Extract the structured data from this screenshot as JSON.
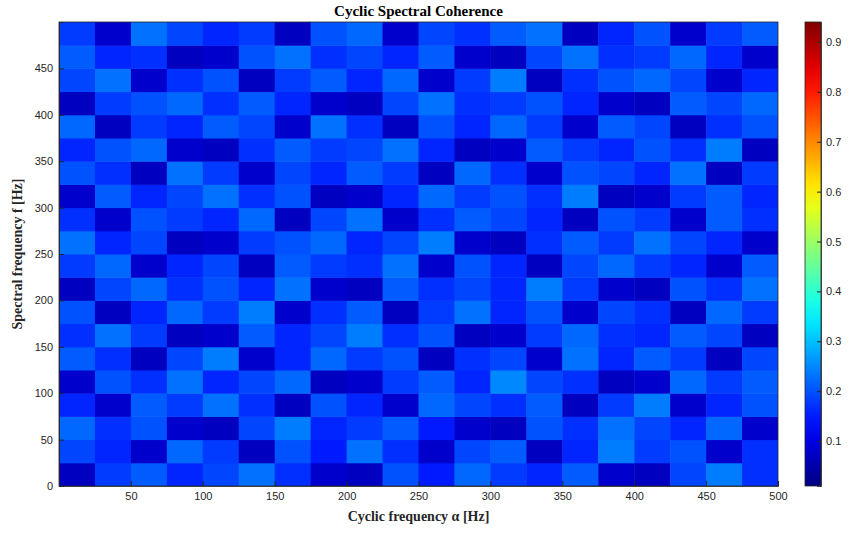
{
  "chart_data": {
    "type": "heatmap",
    "title": "Cyclic Spectral Coherence",
    "x_label": "Cyclic frequency α [Hz]",
    "y_label": "Spectral frequency f [Hz]",
    "xlim": [
      0,
      500
    ],
    "ylim": [
      0,
      500
    ],
    "xticks": [
      50,
      100,
      150,
      200,
      250,
      300,
      350,
      400,
      450,
      500
    ],
    "yticks": [
      0,
      50,
      100,
      150,
      200,
      250,
      300,
      350,
      400,
      450
    ],
    "grid": false,
    "color": "jet",
    "x_bins": [
      0,
      25,
      50,
      75,
      100,
      125,
      150,
      175,
      200,
      225,
      250,
      275,
      300,
      325,
      350,
      375,
      400,
      425,
      450,
      475,
      500
    ],
    "y_bins": [
      0,
      25,
      50,
      75,
      100,
      125,
      150,
      175,
      200,
      225,
      250,
      275,
      300,
      325,
      350,
      375,
      400,
      425,
      450,
      475,
      500
    ],
    "z": [
      [
        0.07,
        0.18,
        0.21,
        0.16,
        0.19,
        0.23,
        0.17,
        0.08,
        0.07,
        0.2,
        0.15,
        0.22,
        0.18,
        0.16,
        0.21,
        0.08,
        0.07,
        0.19,
        0.24,
        0.17
      ],
      [
        0.19,
        0.16,
        0.08,
        0.22,
        0.18,
        0.07,
        0.2,
        0.15,
        0.23,
        0.17,
        0.08,
        0.19,
        0.21,
        0.07,
        0.16,
        0.24,
        0.18,
        0.2,
        0.08,
        0.17
      ],
      [
        0.22,
        0.17,
        0.2,
        0.08,
        0.07,
        0.19,
        0.24,
        0.16,
        0.18,
        0.21,
        0.15,
        0.08,
        0.07,
        0.2,
        0.17,
        0.23,
        0.19,
        0.16,
        0.22,
        0.08
      ],
      [
        0.16,
        0.08,
        0.21,
        0.18,
        0.23,
        0.17,
        0.07,
        0.2,
        0.16,
        0.08,
        0.22,
        0.19,
        0.17,
        0.21,
        0.07,
        0.18,
        0.24,
        0.08,
        0.16,
        0.2
      ],
      [
        0.08,
        0.2,
        0.17,
        0.23,
        0.16,
        0.19,
        0.22,
        0.07,
        0.08,
        0.18,
        0.21,
        0.16,
        0.25,
        0.19,
        0.17,
        0.07,
        0.08,
        0.22,
        0.18,
        0.21
      ],
      [
        0.21,
        0.17,
        0.07,
        0.19,
        0.24,
        0.08,
        0.16,
        0.22,
        0.18,
        0.2,
        0.07,
        0.17,
        0.19,
        0.08,
        0.23,
        0.16,
        0.21,
        0.18,
        0.07,
        0.19
      ],
      [
        0.17,
        0.23,
        0.18,
        0.07,
        0.08,
        0.21,
        0.16,
        0.19,
        0.24,
        0.17,
        0.2,
        0.07,
        0.08,
        0.18,
        0.22,
        0.17,
        0.16,
        0.21,
        0.19,
        0.07
      ],
      [
        0.2,
        0.07,
        0.16,
        0.22,
        0.18,
        0.24,
        0.08,
        0.17,
        0.21,
        0.07,
        0.18,
        0.23,
        0.16,
        0.2,
        0.08,
        0.19,
        0.17,
        0.07,
        0.22,
        0.18
      ],
      [
        0.07,
        0.19,
        0.22,
        0.17,
        0.2,
        0.16,
        0.23,
        0.08,
        0.07,
        0.21,
        0.17,
        0.19,
        0.16,
        0.24,
        0.18,
        0.08,
        0.07,
        0.2,
        0.17,
        0.23
      ],
      [
        0.18,
        0.22,
        0.08,
        0.16,
        0.19,
        0.07,
        0.21,
        0.18,
        0.17,
        0.23,
        0.08,
        0.2,
        0.16,
        0.07,
        0.19,
        0.22,
        0.18,
        0.16,
        0.08,
        0.21
      ],
      [
        0.23,
        0.16,
        0.19,
        0.07,
        0.08,
        0.18,
        0.2,
        0.22,
        0.16,
        0.19,
        0.24,
        0.08,
        0.07,
        0.17,
        0.21,
        0.18,
        0.23,
        0.19,
        0.16,
        0.08
      ],
      [
        0.17,
        0.08,
        0.2,
        0.18,
        0.16,
        0.22,
        0.07,
        0.19,
        0.23,
        0.08,
        0.17,
        0.21,
        0.19,
        0.16,
        0.07,
        0.2,
        0.18,
        0.08,
        0.21,
        0.17
      ],
      [
        0.08,
        0.21,
        0.16,
        0.19,
        0.23,
        0.17,
        0.2,
        0.07,
        0.08,
        0.16,
        0.22,
        0.18,
        0.2,
        0.17,
        0.24,
        0.07,
        0.08,
        0.18,
        0.21,
        0.16
      ],
      [
        0.2,
        0.17,
        0.07,
        0.23,
        0.18,
        0.08,
        0.19,
        0.16,
        0.21,
        0.18,
        0.07,
        0.22,
        0.17,
        0.08,
        0.2,
        0.19,
        0.16,
        0.23,
        0.07,
        0.18
      ],
      [
        0.16,
        0.2,
        0.22,
        0.08,
        0.07,
        0.17,
        0.21,
        0.18,
        0.19,
        0.23,
        0.16,
        0.07,
        0.08,
        0.21,
        0.18,
        0.16,
        0.2,
        0.17,
        0.24,
        0.07
      ],
      [
        0.22,
        0.07,
        0.18,
        0.16,
        0.21,
        0.19,
        0.08,
        0.23,
        0.17,
        0.07,
        0.2,
        0.16,
        0.22,
        0.18,
        0.08,
        0.21,
        0.19,
        0.07,
        0.17,
        0.2
      ],
      [
        0.07,
        0.18,
        0.2,
        0.22,
        0.17,
        0.21,
        0.16,
        0.08,
        0.07,
        0.19,
        0.23,
        0.17,
        0.18,
        0.2,
        0.16,
        0.08,
        0.07,
        0.21,
        0.19,
        0.22
      ],
      [
        0.19,
        0.23,
        0.08,
        0.17,
        0.2,
        0.07,
        0.18,
        0.21,
        0.16,
        0.22,
        0.08,
        0.18,
        0.24,
        0.07,
        0.17,
        0.2,
        0.22,
        0.19,
        0.08,
        0.16
      ],
      [
        0.21,
        0.16,
        0.17,
        0.07,
        0.08,
        0.2,
        0.23,
        0.17,
        0.19,
        0.16,
        0.21,
        0.08,
        0.07,
        0.19,
        0.23,
        0.17,
        0.18,
        0.22,
        0.16,
        0.08
      ],
      [
        0.18,
        0.08,
        0.23,
        0.19,
        0.16,
        0.18,
        0.07,
        0.2,
        0.22,
        0.08,
        0.19,
        0.17,
        0.21,
        0.23,
        0.07,
        0.16,
        0.2,
        0.08,
        0.18,
        0.21
      ]
    ],
    "colorbar": {
      "range": [
        0.01,
        0.94
      ],
      "ticks": [
        0.1,
        0.2,
        0.3,
        0.4,
        0.5,
        0.6,
        0.7,
        0.8,
        0.9
      ]
    }
  }
}
